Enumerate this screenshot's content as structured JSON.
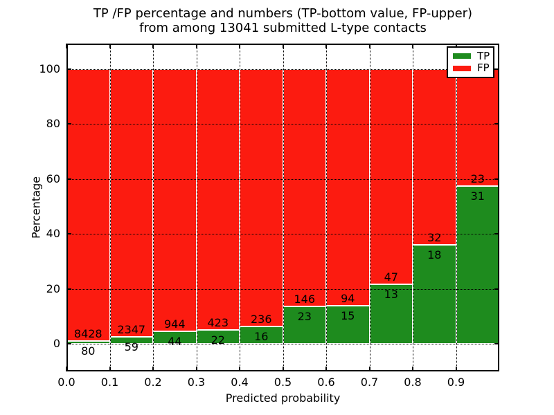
{
  "figure": {
    "title_line1": "TP /FP percentage and numbers (TP-bottom value, FP-upper)",
    "title_line2": "from among 13041 submitted L-type contacts"
  },
  "chart_data": {
    "type": "bar",
    "subtype": "stacked-percentage",
    "title": "TP /FP percentage and numbers (TP-bottom value, FP-upper)\nfrom among 13041 submitted L-type contacts",
    "xlabel": "Predicted probability",
    "ylabel": "Percentage",
    "xlim": [
      0.0,
      1.0
    ],
    "ylim": [
      -10,
      110
    ],
    "bin_width": 0.1,
    "grid": {
      "style": "dotted",
      "axes": "both",
      "on_top_of_bars": true
    },
    "x_tick_labels": [
      "0.0",
      "0.1",
      "0.2",
      "0.3",
      "0.4",
      "0.5",
      "0.6",
      "0.7",
      "0.8",
      "0.9"
    ],
    "y_tick_labels": [
      "0",
      "20",
      "40",
      "60",
      "80",
      "100"
    ],
    "y_tick_values": [
      0,
      20,
      40,
      60,
      80,
      100
    ],
    "categories": [
      "0.0",
      "0.1",
      "0.2",
      "0.3",
      "0.4",
      "0.5",
      "0.6",
      "0.7",
      "0.8",
      "0.9"
    ],
    "series": [
      {
        "name": "TP",
        "color": "#1e8b1e",
        "counts": [
          80,
          59,
          44,
          22,
          16,
          23,
          15,
          13,
          18,
          31
        ],
        "percent": [
          0.94,
          2.45,
          4.45,
          4.94,
          6.35,
          13.61,
          13.76,
          21.67,
          36.0,
          57.41
        ]
      },
      {
        "name": "FP",
        "color": "#fc1b10",
        "counts": [
          8428,
          2347,
          944,
          423,
          236,
          146,
          94,
          47,
          32,
          23
        ],
        "percent": [
          99.06,
          97.55,
          95.55,
          95.06,
          93.65,
          86.39,
          86.24,
          78.33,
          64.0,
          42.59
        ]
      }
    ],
    "total_contacts": 13041,
    "legend": {
      "position": "upper right",
      "entries": [
        "TP",
        "FP"
      ]
    },
    "bar_edge_color": "#ffffff"
  }
}
